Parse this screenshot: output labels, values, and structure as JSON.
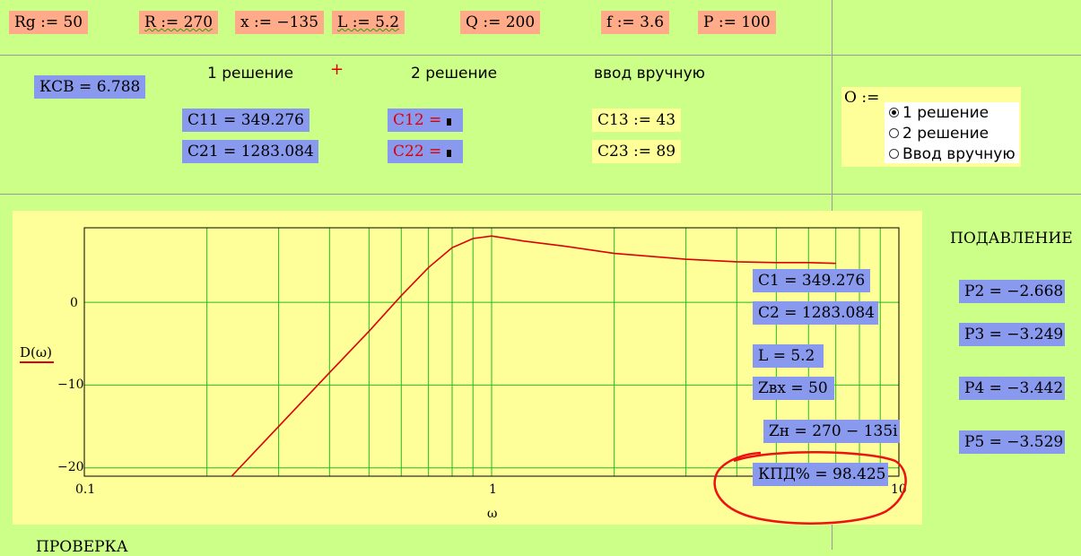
{
  "top_vars": [
    {
      "name": "Rg := 50"
    },
    {
      "name": "R := 270"
    },
    {
      "name": "x := −135"
    },
    {
      "name": "L := 5.2"
    },
    {
      "name": "Q := 200"
    },
    {
      "name": "f := 3.6"
    },
    {
      "name": "P := 100"
    }
  ],
  "ksv": "КСВ = 6.788",
  "headers": {
    "sol1": "1 решение",
    "plus": "+",
    "sol2": "2 решение",
    "manual": "ввод вручную"
  },
  "c11": "C11 = 349.276",
  "c21": "C21 = 1283.084",
  "c12": "C12 =",
  "c22": "C22 =",
  "c13": "C13 := 43",
  "c23": "C23 := 89",
  "option": {
    "label": "O :=",
    "items": [
      {
        "label": "1 решение",
        "selected": true
      },
      {
        "label": "2 решение",
        "selected": false
      },
      {
        "label": "Ввод вручную",
        "selected": false
      }
    ]
  },
  "chart_data": {
    "type": "line",
    "x_scale": "log",
    "xlim": [
      0.1,
      10
    ],
    "ylim": [
      -21,
      9
    ],
    "xlabel": "ω",
    "ylabel": "D(ω)",
    "x_ticks": [
      "0.1",
      "1",
      "10"
    ],
    "y_ticks": [
      "0",
      "−10",
      "−20"
    ],
    "grid": true,
    "series": [
      {
        "color": "#dd0000",
        "points": [
          [
            0.23,
            -21
          ],
          [
            0.3,
            -15
          ],
          [
            0.4,
            -8.5
          ],
          [
            0.5,
            -3.5
          ],
          [
            0.6,
            0.8
          ],
          [
            0.7,
            4.2
          ],
          [
            0.8,
            6.6
          ],
          [
            0.9,
            7.7
          ],
          [
            1.0,
            8.0
          ],
          [
            1.2,
            7.4
          ],
          [
            1.5,
            6.8
          ],
          [
            2.0,
            5.9
          ],
          [
            3.0,
            5.2
          ],
          [
            4.0,
            4.9
          ],
          [
            5.0,
            4.8
          ],
          [
            6.0,
            4.8
          ],
          [
            7.0,
            4.7
          ]
        ]
      }
    ]
  },
  "overlay": {
    "c1": "C1 = 349.276",
    "c2": "C2 = 1283.084",
    "l": "L = 5.2",
    "zin": "Zвх = 50",
    "zn": "Zн = 270 − 135i",
    "kpd": "КПД% = 98.425"
  },
  "suppression": {
    "title": "ПОДАВЛЕНИЕ",
    "p2": "P2 = −2.668",
    "p3": "P3 = −3.249",
    "p4": "P4 = −3.442",
    "p5": "P5 = −3.529"
  },
  "bottom_label": "ПРОВЕРКА"
}
